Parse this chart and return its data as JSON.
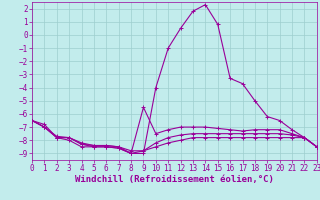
{
  "xlabel": "Windchill (Refroidissement éolien,°C)",
  "xlim": [
    0,
    23
  ],
  "ylim": [
    -9.5,
    2.5
  ],
  "xticks": [
    0,
    1,
    2,
    3,
    4,
    5,
    6,
    7,
    8,
    9,
    10,
    11,
    12,
    13,
    14,
    15,
    16,
    17,
    18,
    19,
    20,
    21,
    22,
    23
  ],
  "yticks": [
    2,
    1,
    0,
    -1,
    -2,
    -3,
    -4,
    -5,
    -6,
    -7,
    -8,
    -9
  ],
  "bg_color": "#c2ecec",
  "grid_color": "#9ecece",
  "line_color": "#990099",
  "lines": [
    {
      "x": [
        0,
        1,
        2,
        3,
        4,
        5,
        6,
        7,
        8,
        9,
        10,
        11,
        12,
        13,
        14,
        15,
        16,
        17,
        18,
        19,
        20,
        21,
        22,
        23
      ],
      "y": [
        -6.5,
        -6.8,
        -7.8,
        -7.8,
        -8.2,
        -8.4,
        -8.4,
        -8.5,
        -9.0,
        -9.0,
        -4.0,
        -1.0,
        0.5,
        1.8,
        2.3,
        0.8,
        -3.3,
        -3.7,
        -5.0,
        -6.2,
        -6.5,
        -7.2,
        -7.8,
        -8.5
      ]
    },
    {
      "x": [
        0,
        1,
        2,
        3,
        4,
        5,
        6,
        7,
        8,
        9,
        10,
        11,
        12,
        13,
        14,
        15,
        16,
        17,
        18,
        19,
        20,
        21,
        22,
        23
      ],
      "y": [
        -6.5,
        -7.0,
        -7.8,
        -7.8,
        -8.3,
        -8.5,
        -8.5,
        -8.6,
        -9.0,
        -5.5,
        -7.5,
        -7.2,
        -7.0,
        -7.0,
        -7.0,
        -7.1,
        -7.2,
        -7.3,
        -7.2,
        -7.2,
        -7.2,
        -7.5,
        -7.8,
        -8.5
      ]
    },
    {
      "x": [
        0,
        1,
        2,
        3,
        4,
        5,
        6,
        7,
        8,
        9,
        10,
        11,
        12,
        13,
        14,
        15,
        16,
        17,
        18,
        19,
        20,
        21,
        22,
        23
      ],
      "y": [
        -6.5,
        -7.0,
        -7.8,
        -8.0,
        -8.5,
        -8.5,
        -8.5,
        -8.6,
        -9.0,
        -8.8,
        -8.2,
        -7.8,
        -7.6,
        -7.5,
        -7.5,
        -7.5,
        -7.5,
        -7.5,
        -7.5,
        -7.5,
        -7.5,
        -7.6,
        -7.8,
        -8.5
      ]
    },
    {
      "x": [
        0,
        1,
        2,
        3,
        4,
        5,
        6,
        7,
        8,
        9,
        10,
        11,
        12,
        13,
        14,
        15,
        16,
        17,
        18,
        19,
        20,
        21,
        22,
        23
      ],
      "y": [
        -6.5,
        -7.0,
        -7.7,
        -7.8,
        -8.3,
        -8.4,
        -8.4,
        -8.5,
        -8.8,
        -8.8,
        -8.5,
        -8.2,
        -8.0,
        -7.8,
        -7.8,
        -7.8,
        -7.8,
        -7.8,
        -7.8,
        -7.8,
        -7.8,
        -7.8,
        -7.8,
        -8.5
      ]
    }
  ],
  "tick_fontsize": 5.5,
  "label_fontsize": 6.5
}
